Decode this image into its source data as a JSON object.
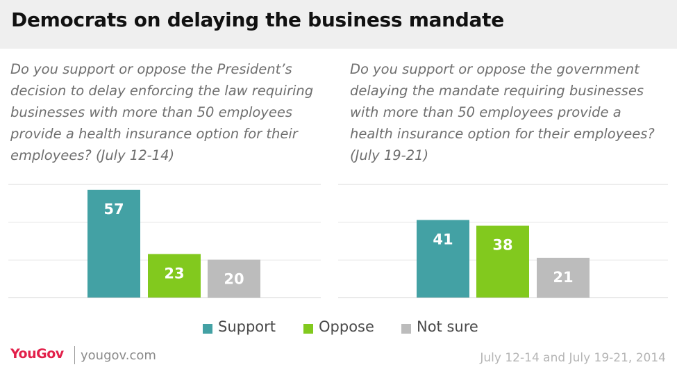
{
  "title": "Democrats on delaying the business mandate",
  "colors": {
    "support": "#43a1a4",
    "oppose": "#82c91e",
    "not_sure": "#bcbcbc",
    "brand": "#e2204a"
  },
  "chart_data": [
    {
      "type": "bar",
      "title": "Do you support or oppose the President’s decision to delay enforcing the law requiring businesses with more than 50 employees provide a health insurance option for their employees? (July 12-14)",
      "categories": [
        "Support",
        "Oppose",
        "Not sure"
      ],
      "values": [
        57,
        23,
        20
      ],
      "ylim": [
        0,
        60
      ],
      "grid": true
    },
    {
      "type": "bar",
      "title": "Do you support or oppose the government delaying the mandate requiring businesses with more than 50 employees provide a health insurance option for their employees? (July 19-21)",
      "categories": [
        "Support",
        "Oppose",
        "Not sure"
      ],
      "values": [
        41,
        38,
        21
      ],
      "ylim": [
        0,
        60
      ],
      "grid": true
    }
  ],
  "legend": {
    "placement": "bottom",
    "items": [
      {
        "label": "Support",
        "color_key": "support"
      },
      {
        "label": "Oppose",
        "color_key": "oppose"
      },
      {
        "label": "Not sure",
        "color_key": "not_sure"
      }
    ]
  },
  "footer": {
    "logo": "YouGov",
    "site": "yougov.com",
    "dates": "July 12-14 and July 19-21, 2014"
  }
}
